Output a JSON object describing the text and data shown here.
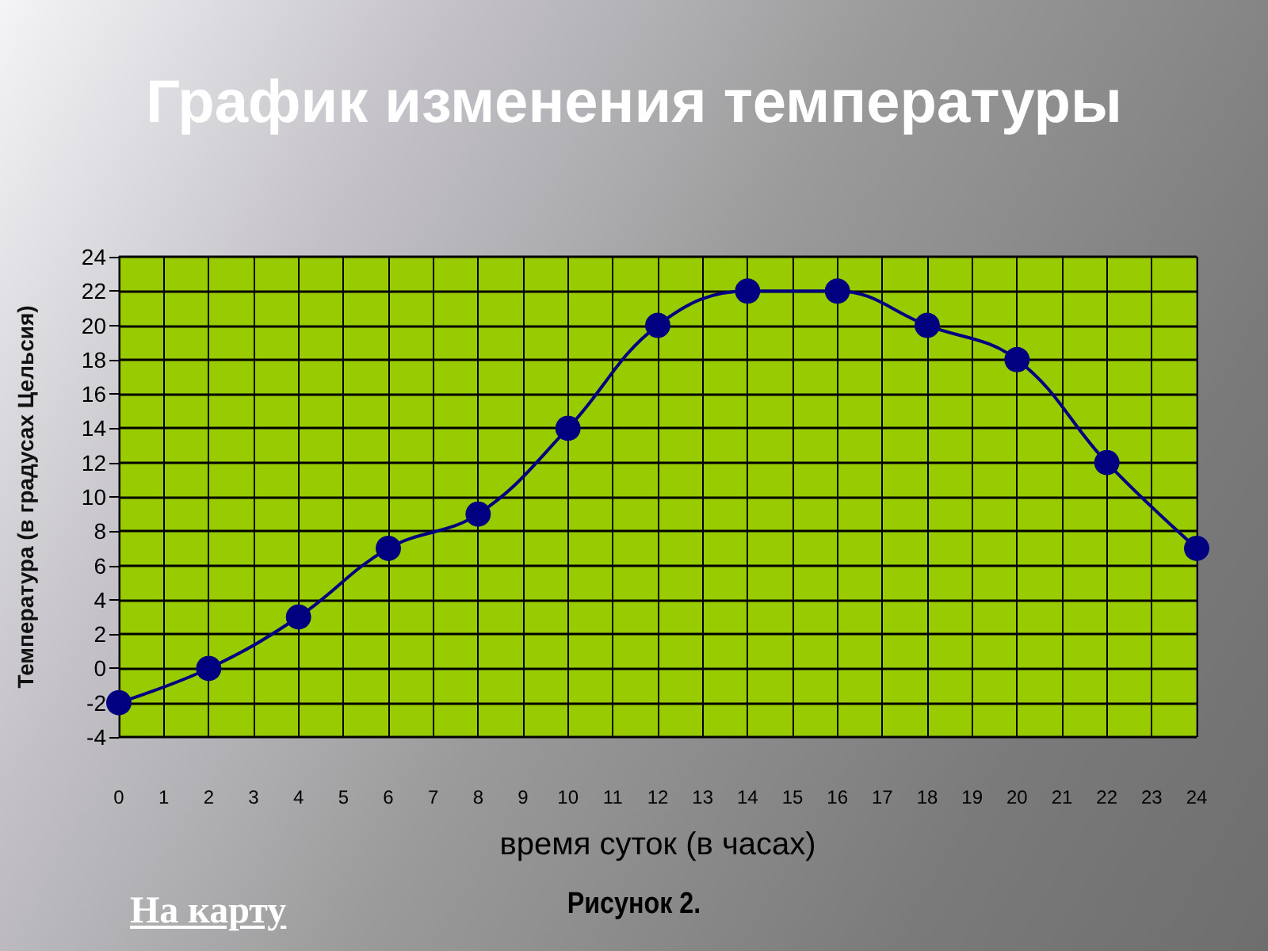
{
  "chart_data": {
    "type": "line",
    "title": "График изменения температуры",
    "xlabel": "время суток (в часах)",
    "ylabel": "Температура (в градусах Цельсия)",
    "annotations": [
      "Рисунок 2.",
      "На карту"
    ],
    "x": [
      0,
      2,
      4,
      6,
      8,
      10,
      12,
      14,
      16,
      18,
      20,
      22,
      24
    ],
    "series": [
      {
        "color": "#000080",
        "values": [
          -2,
          0,
          3,
          7,
          9,
          14,
          20,
          22,
          22,
          20,
          18,
          12,
          7
        ]
      }
    ],
    "xlim": [
      0,
      24
    ],
    "xticks": [
      0,
      1,
      2,
      3,
      4,
      5,
      6,
      7,
      8,
      9,
      10,
      11,
      12,
      13,
      14,
      15,
      16,
      17,
      18,
      19,
      20,
      21,
      22,
      23,
      24
    ],
    "ylim": [
      -4,
      24
    ],
    "yticks": [
      -4,
      -2,
      0,
      2,
      4,
      6,
      8,
      10,
      12,
      14,
      16,
      18,
      20,
      22,
      24
    ],
    "grid": true,
    "marker": "circle",
    "line_style": "solid"
  }
}
